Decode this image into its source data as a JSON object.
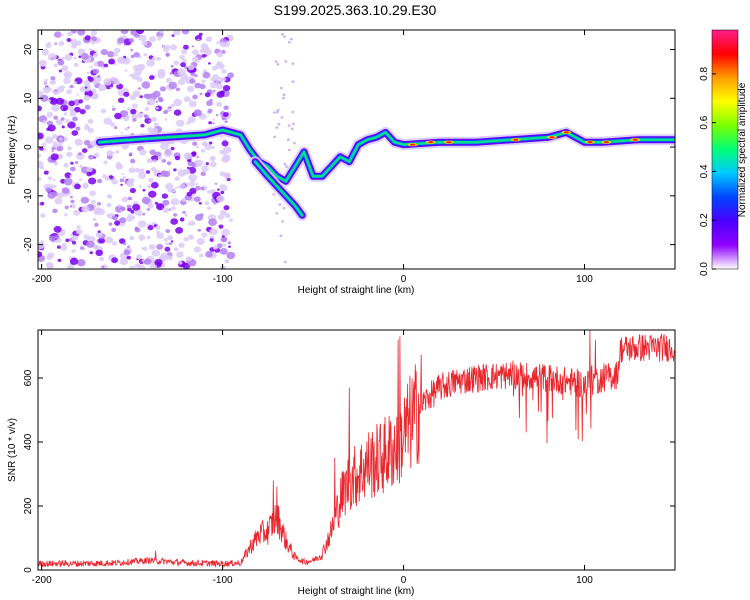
{
  "title": "S199.2025.363.10.29.E30",
  "colors": {
    "snr_line": "#e8262c",
    "axis": "#000000",
    "colormap": [
      "#ffffff",
      "#8f00ff",
      "#4b00ff",
      "#0044ff",
      "#00c8ff",
      "#00ff7a",
      "#7aff00",
      "#ffff00",
      "#ff9d00",
      "#ff0000",
      "#ff1e8c"
    ]
  },
  "chart_data": [
    {
      "type": "heatmap",
      "title": "",
      "xlabel": "Height of straight line (km)",
      "ylabel": "Frequency (Hz)",
      "xlim": [
        -202,
        150
      ],
      "ylim": [
        -25,
        24
      ],
      "x_ticks": [
        -200,
        -100,
        0,
        100
      ],
      "x_tick_labels": [
        "-200",
        "-100",
        "0",
        "100"
      ],
      "y_ticks": [
        -20,
        -10,
        0,
        10,
        20
      ],
      "y_tick_labels": [
        "-20",
        "-10",
        "0",
        "10",
        "20"
      ],
      "colorbar": {
        "label": "Normalized spectral amplitude",
        "range": [
          0,
          0.98
        ],
        "ticks": [
          0.0,
          0.2,
          0.4,
          0.6,
          0.8
        ],
        "tick_labels": [
          "0.0",
          "0.2",
          "0.4",
          "0.6",
          "0.8"
        ]
      },
      "ridges": [
        {
          "name": "main-trend",
          "x": [
            -168,
            -150,
            -130,
            -110,
            -100,
            -95,
            -90,
            -85,
            -80,
            -75,
            -70,
            -65,
            -60,
            -55,
            -50,
            -45,
            -40,
            -35,
            -30,
            -25,
            -20,
            -15,
            -10,
            -5,
            0,
            20,
            40,
            60,
            80,
            90,
            100,
            110,
            130,
            150
          ],
          "y": [
            1,
            1.5,
            2,
            2.5,
            3.5,
            3,
            2.5,
            -0.5,
            -3,
            -4,
            -6,
            -7,
            -4,
            -1,
            -6,
            -6,
            -4,
            -2,
            -3,
            0.5,
            1.5,
            2,
            3,
            1,
            0.5,
            1,
            1,
            1.5,
            2,
            3,
            1,
            1,
            1.5,
            1.5
          ]
        },
        {
          "name": "descending-branch",
          "x": [
            -82,
            -75,
            -70,
            -65,
            -60,
            -56
          ],
          "y": [
            -3,
            -6,
            -8,
            -10,
            -12,
            -14
          ]
        }
      ],
      "scatter_noise": {
        "x_range": [
          -202,
          -95
        ],
        "y_range": [
          -25,
          24
        ]
      }
    },
    {
      "type": "line",
      "title": "",
      "xlabel": "Height of straight line (km)",
      "ylabel": "SNR (10 * v/v)",
      "xlim": [
        -202,
        150
      ],
      "ylim": [
        0,
        750
      ],
      "x_ticks": [
        -200,
        -100,
        0,
        100
      ],
      "x_tick_labels": [
        "-200",
        "-100",
        "0",
        "100"
      ],
      "y_ticks": [
        0,
        200,
        400,
        600
      ],
      "y_tick_labels": [
        "0",
        "200",
        "400",
        "600"
      ],
      "trend": {
        "x": [
          -202,
          -180,
          -160,
          -140,
          -120,
          -100,
          -90,
          -85,
          -80,
          -75,
          -70,
          -65,
          -60,
          -55,
          -50,
          -45,
          -40,
          -35,
          -30,
          -25,
          -20,
          -15,
          -10,
          -5,
          0,
          5,
          10,
          20,
          30,
          40,
          60,
          80,
          90,
          100,
          105,
          110,
          118,
          120,
          130,
          150
        ],
        "y": [
          20,
          20,
          22,
          30,
          22,
          20,
          22,
          70,
          110,
          120,
          170,
          90,
          40,
          25,
          30,
          50,
          120,
          220,
          280,
          300,
          330,
          340,
          360,
          380,
          420,
          470,
          520,
          570,
          590,
          600,
          610,
          600,
          590,
          580,
          590,
          600,
          610,
          690,
          695,
          695
        ]
      },
      "spikes": {
        "x": [
          -137,
          -72,
          -70,
          -38,
          -30,
          -3,
          -2,
          2,
          103,
          104,
          106
        ],
        "y": [
          60,
          280,
          260,
          350,
          570,
          720,
          730,
          480,
          750,
          640,
          720
        ]
      }
    }
  ]
}
